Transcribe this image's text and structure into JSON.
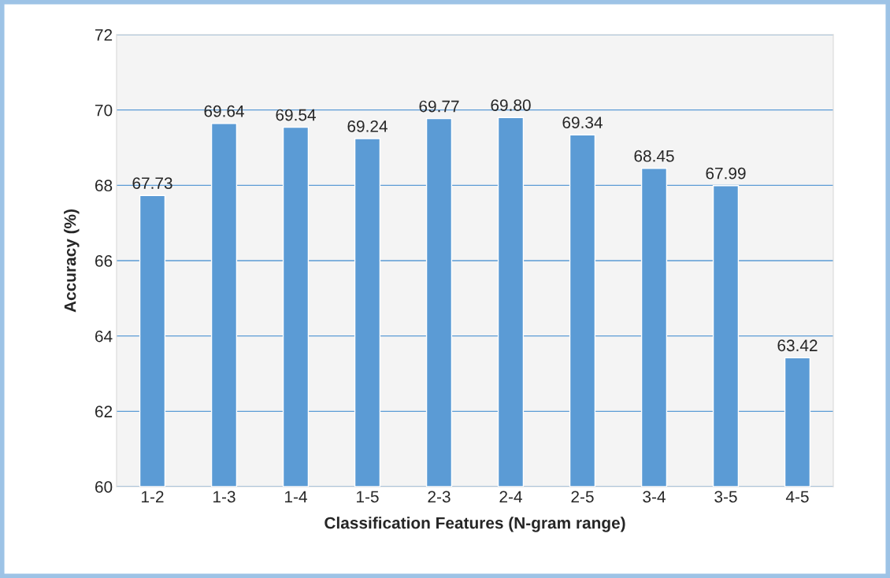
{
  "chart_data": {
    "type": "bar",
    "xlabel": "Classification Features (N-gram range)",
    "ylabel": "Accuracy (%)",
    "categories": [
      "1-2",
      "1-3",
      "1-4",
      "1-5",
      "2-3",
      "2-4",
      "2-5",
      "3-4",
      "3-5",
      "4-5"
    ],
    "values": [
      67.73,
      69.64,
      69.54,
      69.24,
      69.77,
      69.8,
      69.34,
      68.45,
      67.99,
      63.42
    ],
    "value_labels": [
      "67.73",
      "69.64",
      "69.54",
      "69.24",
      "69.77",
      "69.80",
      "69.34",
      "68.45",
      "67.99",
      "63.42"
    ],
    "color": "#5b9bd5",
    "ylim": [
      60,
      72
    ],
    "yticks": [
      60,
      62,
      64,
      66,
      68,
      70,
      72
    ],
    "grid": "y",
    "legend": false
  }
}
